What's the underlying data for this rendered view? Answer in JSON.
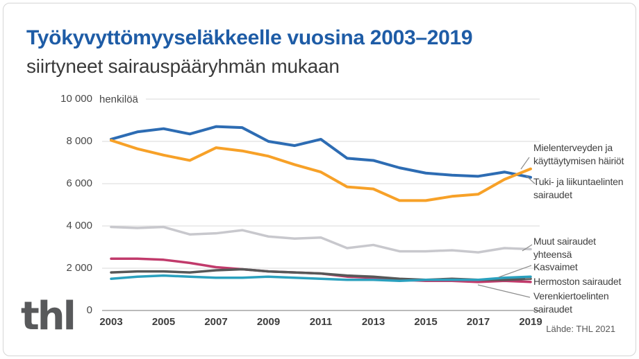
{
  "header": {
    "title": "Työkyvyttömyyseläkkeelle vuosina 2003–2019",
    "subtitle": "siirtyneet sairauspääryhmän mukaan"
  },
  "footer": {
    "logo_text": "thl",
    "source": "Lähde: THL 2021"
  },
  "colors": {
    "title_blue": "#1e5ca6",
    "grid": "#e0e0e0",
    "zero_axis": "#a3a3a3",
    "leader_line": "#8c8c8c",
    "logo_gray": "#58595b"
  },
  "chart_data": {
    "type": "line",
    "title": "Työkyvyttömyyseläkkeelle vuosina 2003–2019 siirtyneet sairauspääryhmän mukaan",
    "unit_label": "henkilöä",
    "xlabel": "",
    "ylabel": "henkilöä",
    "ylim": [
      0,
      10000
    ],
    "grid": "horizontal",
    "legend_position": "right-edge-annotations",
    "x": [
      2003,
      2004,
      2005,
      2006,
      2007,
      2008,
      2009,
      2010,
      2011,
      2012,
      2013,
      2014,
      2015,
      2016,
      2017,
      2018,
      2019
    ],
    "x_tick_labels": [
      "2003",
      "2005",
      "2007",
      "2009",
      "2011",
      "2013",
      "2015",
      "2017",
      "2019"
    ],
    "y_ticks": [
      {
        "value": 10000,
        "label": "10 000"
      },
      {
        "value": 8000,
        "label": "8 000"
      },
      {
        "value": 6000,
        "label": "6 000"
      },
      {
        "value": 4000,
        "label": "4 000"
      },
      {
        "value": 2000,
        "label": "2 000"
      },
      {
        "value": 0,
        "label": "0"
      }
    ],
    "series": [
      {
        "name": "Muut sairaudet yhteensä",
        "color": "#c8c8cd",
        "values": [
          3950,
          3900,
          3950,
          3600,
          3650,
          3800,
          3500,
          3400,
          3450,
          2950,
          3100,
          2800,
          2800,
          2850,
          2750,
          2950,
          2900
        ]
      },
      {
        "name": "Verenkiertoelinten sairaudet",
        "color": "#c13a6b",
        "values": [
          2450,
          2450,
          2400,
          2250,
          2050,
          1950,
          1850,
          1800,
          1750,
          1600,
          1550,
          1450,
          1400,
          1400,
          1350,
          1400,
          1350
        ]
      },
      {
        "name": "Kasvaimet",
        "color": "#575757",
        "values": [
          1800,
          1850,
          1850,
          1800,
          1900,
          1950,
          1850,
          1800,
          1750,
          1650,
          1600,
          1500,
          1450,
          1500,
          1450,
          1450,
          1500
        ]
      },
      {
        "name": "Hermoston sairaudet",
        "color": "#2aa0be",
        "values": [
          1500,
          1600,
          1650,
          1600,
          1550,
          1550,
          1600,
          1550,
          1500,
          1450,
          1450,
          1400,
          1450,
          1450,
          1450,
          1550,
          1600
        ]
      },
      {
        "name": "Tuki- ja liikuntaelinten sairaudet",
        "color": "#2d6cb3",
        "values": [
          8100,
          8450,
          8600,
          8350,
          8700,
          8650,
          8000,
          7800,
          8100,
          7200,
          7100,
          6750,
          6500,
          6400,
          6350,
          6550,
          6300
        ]
      },
      {
        "name": "Mielenterveyden ja käyttäytymisen häiriöt",
        "color": "#f7a128",
        "values": [
          8050,
          7650,
          7350,
          7100,
          7700,
          7550,
          7300,
          6900,
          6550,
          5850,
          5750,
          5200,
          5200,
          5400,
          5500,
          6200,
          6700
        ]
      }
    ]
  }
}
